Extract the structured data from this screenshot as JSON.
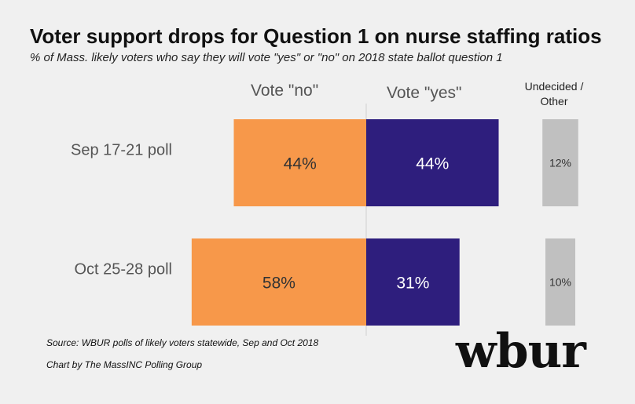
{
  "title": "Voter support drops for Question 1 on nurse staffing ratios",
  "subtitle": "% of Mass. likely voters who say they will vote \"yes\" or \"no\" on 2018 state ballot question 1",
  "columns": {
    "no": "Vote \"no\"",
    "yes": "Vote \"yes\"",
    "undecided_line1": "Undecided /",
    "undecided_line2": "Other"
  },
  "source": "Source: WBUR polls of likely voters statewide, Sep and Oct 2018",
  "credit": "Chart by The MassINC Polling Group",
  "logo": "wbur",
  "colors": {
    "no": "#f7984a",
    "yes": "#2e1e7d",
    "undecided": "#c0c0c0",
    "no_label": "#333333",
    "yes_label": "#ffffff",
    "undecided_label": "#333333"
  },
  "chart_data": {
    "type": "bar",
    "orientation": "diverging-horizontal",
    "categories": [
      "Sep 17-21 poll",
      "Oct 25-28 poll"
    ],
    "series": [
      {
        "name": "Vote \"no\"",
        "values": [
          44,
          58
        ],
        "labels": [
          "44%",
          "58%"
        ]
      },
      {
        "name": "Vote \"yes\"",
        "values": [
          44,
          31
        ],
        "labels": [
          "44%",
          "31%"
        ]
      },
      {
        "name": "Undecided / Other",
        "values": [
          12,
          10
        ],
        "labels": [
          "12%",
          "10%"
        ]
      }
    ],
    "unit": "%"
  }
}
